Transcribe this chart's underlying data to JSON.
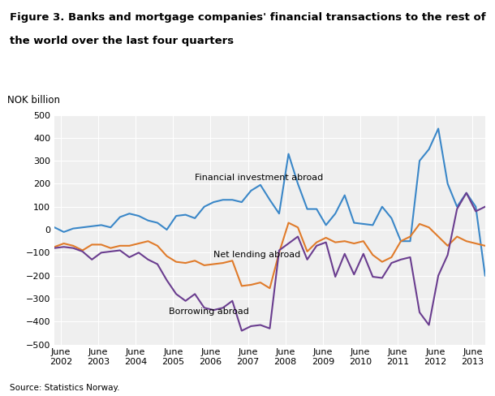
{
  "title_line1": "Figure 3. Banks and mortgage companies' financial transactions to the rest of",
  "title_line2": "the world over the last four quarters",
  "ylabel": "NOK billion",
  "source": "Source: Statistics Norway.",
  "plot_bg_color": "#efefef",
  "fig_bg_color": "#ffffff",
  "xlim_start": 2002.25,
  "xlim_end": 2013.75,
  "ylim": [
    -500,
    500
  ],
  "yticks": [
    -500,
    -400,
    -300,
    -200,
    -100,
    0,
    100,
    200,
    300,
    400,
    500
  ],
  "xtick_labels": [
    "June\n2002",
    "June\n2003",
    "June\n2004",
    "June\n2005",
    "June\n2006",
    "June\n2007",
    "June\n2008",
    "June\n2009",
    "June\n2010",
    "June\n2011",
    "June\n2012",
    "June\n2013"
  ],
  "xtick_positions": [
    2002.417,
    2003.417,
    2004.417,
    2005.417,
    2006.417,
    2007.417,
    2008.417,
    2009.417,
    2010.417,
    2011.417,
    2012.417,
    2013.417
  ],
  "colors": {
    "financial_investment": "#3a87c8",
    "net_lending": "#e07b2a",
    "borrowing": "#6a3d8f"
  },
  "labels": {
    "financial_investment": "Financial investment abroad",
    "net_lending": "Net lending abroad",
    "borrowing": "Borrowing abroad"
  },
  "label_positions": {
    "financial_investment": [
      2006.0,
      210
    ],
    "net_lending": [
      2006.5,
      -128
    ],
    "borrowing": [
      2005.3,
      -375
    ]
  },
  "financial_investment_x": [
    2002.25,
    2002.5,
    2002.75,
    2003.0,
    2003.25,
    2003.5,
    2003.75,
    2004.0,
    2004.25,
    2004.5,
    2004.75,
    2005.0,
    2005.25,
    2005.5,
    2005.75,
    2006.0,
    2006.25,
    2006.5,
    2006.75,
    2007.0,
    2007.25,
    2007.5,
    2007.75,
    2008.0,
    2008.25,
    2008.5,
    2008.75,
    2009.0,
    2009.25,
    2009.5,
    2009.75,
    2010.0,
    2010.25,
    2010.5,
    2010.75,
    2011.0,
    2011.25,
    2011.5,
    2011.75,
    2012.0,
    2012.25,
    2012.5,
    2012.75,
    2013.0,
    2013.25,
    2013.5,
    2013.75
  ],
  "financial_investment_y": [
    10,
    -10,
    5,
    10,
    15,
    20,
    10,
    55,
    70,
    60,
    40,
    30,
    0,
    60,
    65,
    50,
    100,
    120,
    130,
    130,
    120,
    170,
    195,
    130,
    70,
    330,
    200,
    90,
    90,
    20,
    70,
    150,
    30,
    25,
    20,
    100,
    50,
    -50,
    -50,
    300,
    350,
    440,
    200,
    100,
    160,
    100,
    -200
  ],
  "net_lending_x": [
    2002.25,
    2002.5,
    2002.75,
    2003.0,
    2003.25,
    2003.5,
    2003.75,
    2004.0,
    2004.25,
    2004.5,
    2004.75,
    2005.0,
    2005.25,
    2005.5,
    2005.75,
    2006.0,
    2006.25,
    2006.5,
    2006.75,
    2007.0,
    2007.25,
    2007.5,
    2007.75,
    2008.0,
    2008.25,
    2008.5,
    2008.75,
    2009.0,
    2009.25,
    2009.5,
    2009.75,
    2010.0,
    2010.25,
    2010.5,
    2010.75,
    2011.0,
    2011.25,
    2011.5,
    2011.75,
    2012.0,
    2012.25,
    2012.5,
    2012.75,
    2013.0,
    2013.25,
    2013.5,
    2013.75
  ],
  "net_lending_y": [
    -75,
    -60,
    -70,
    -90,
    -65,
    -65,
    -80,
    -70,
    -70,
    -60,
    -50,
    -70,
    -115,
    -140,
    -145,
    -135,
    -155,
    -150,
    -145,
    -135,
    -245,
    -240,
    -230,
    -255,
    -100,
    30,
    10,
    -95,
    -55,
    -35,
    -55,
    -50,
    -60,
    -50,
    -110,
    -140,
    -120,
    -50,
    -30,
    25,
    10,
    -30,
    -70,
    -30,
    -50,
    -60,
    -70
  ],
  "borrowing_x": [
    2002.25,
    2002.5,
    2002.75,
    2003.0,
    2003.25,
    2003.5,
    2003.75,
    2004.0,
    2004.25,
    2004.5,
    2004.75,
    2005.0,
    2005.25,
    2005.5,
    2005.75,
    2006.0,
    2006.25,
    2006.5,
    2006.75,
    2007.0,
    2007.25,
    2007.5,
    2007.75,
    2008.0,
    2008.25,
    2008.5,
    2008.75,
    2009.0,
    2009.25,
    2009.5,
    2009.75,
    2010.0,
    2010.25,
    2010.5,
    2010.75,
    2011.0,
    2011.25,
    2011.5,
    2011.75,
    2012.0,
    2012.25,
    2012.5,
    2012.75,
    2013.0,
    2013.25,
    2013.5,
    2013.75
  ],
  "borrowing_y": [
    -80,
    -75,
    -80,
    -95,
    -130,
    -100,
    -95,
    -90,
    -120,
    -100,
    -130,
    -150,
    -220,
    -280,
    -310,
    -280,
    -340,
    -350,
    -340,
    -310,
    -440,
    -420,
    -415,
    -430,
    -90,
    -60,
    -30,
    -130,
    -70,
    -55,
    -205,
    -105,
    -195,
    -105,
    -205,
    -210,
    -145,
    -130,
    -120,
    -360,
    -415,
    -200,
    -110,
    90,
    160,
    80,
    100
  ]
}
